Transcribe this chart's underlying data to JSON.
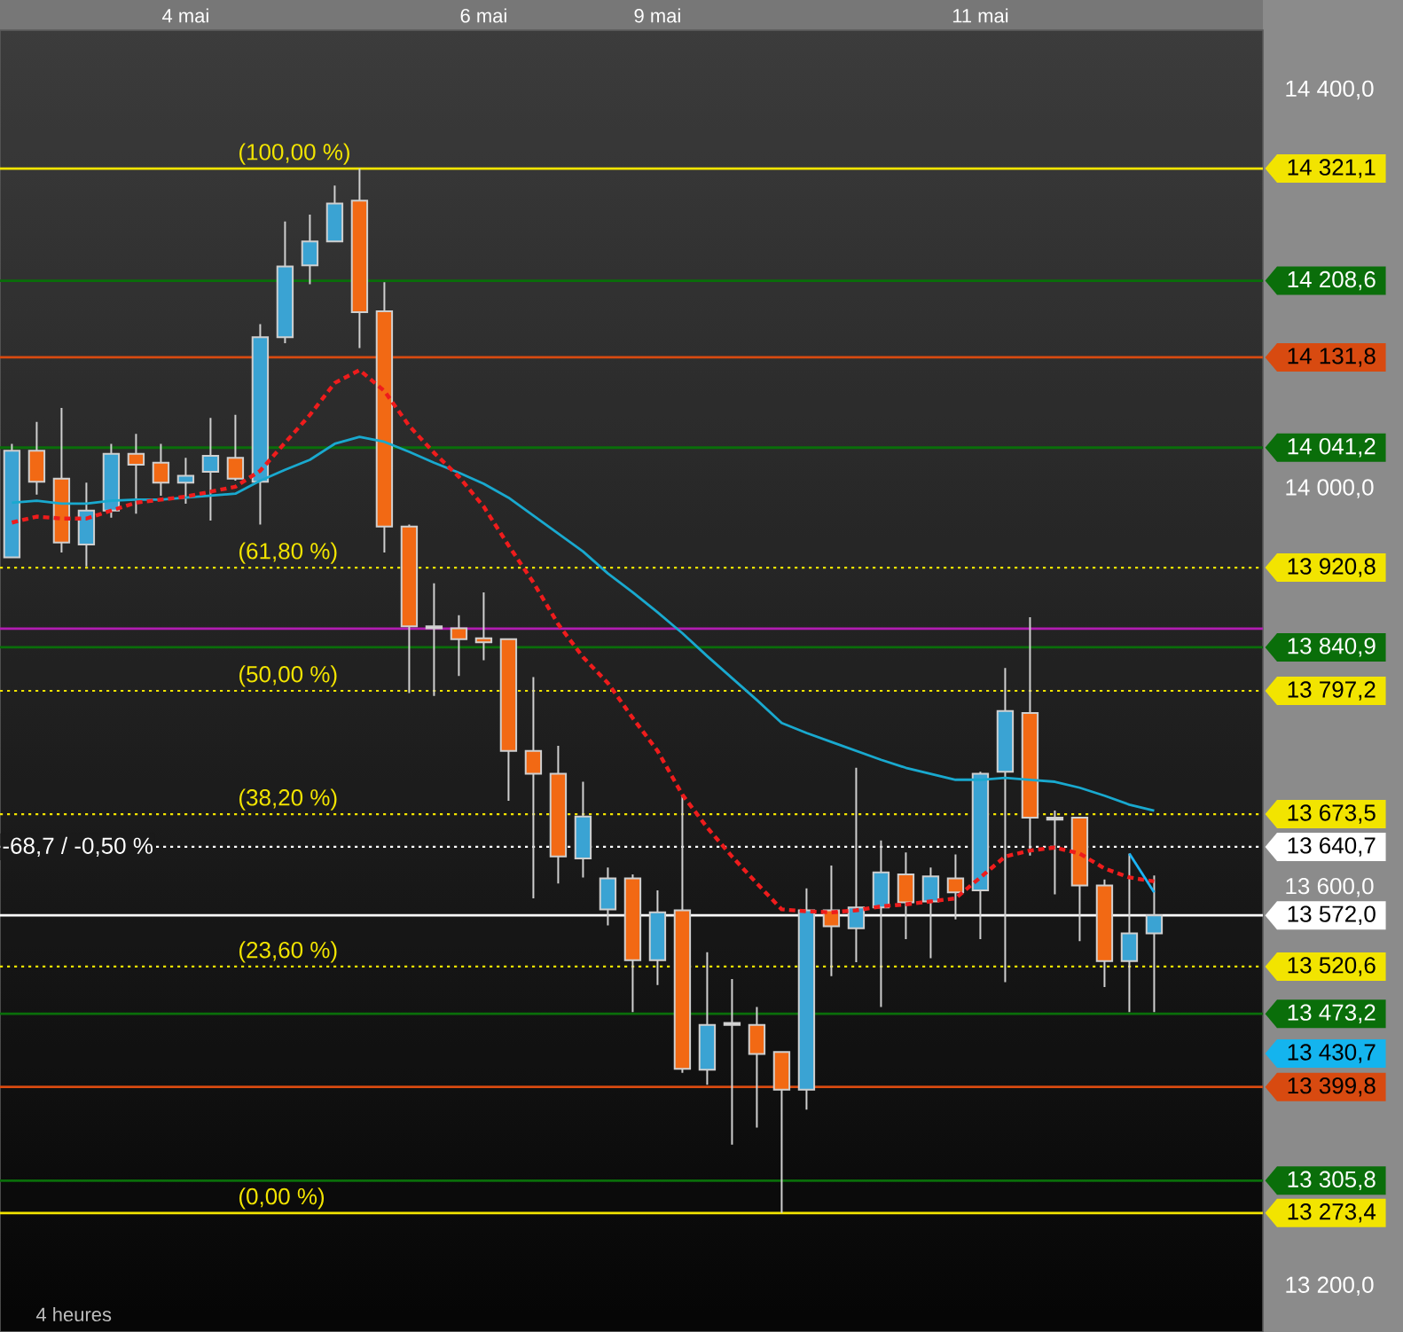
{
  "chart_data": {
    "type": "candlestick",
    "categories": [
      null,
      null,
      null,
      null,
      null,
      null,
      null,
      "4 mai",
      null,
      null,
      null,
      null,
      null,
      null,
      null,
      null,
      null,
      null,
      null,
      "6 mai",
      null,
      null,
      null,
      null,
      null,
      null,
      "9 mai",
      null,
      null,
      null,
      null,
      null,
      null,
      null,
      null,
      null,
      null,
      null,
      null,
      "11 mai",
      null,
      null,
      null,
      null,
      null,
      null,
      null
    ],
    "ohlc": [
      [
        13931,
        14045,
        13931,
        14038
      ],
      [
        14038,
        14067,
        13994,
        14007
      ],
      [
        14010,
        14081,
        13936,
        13946
      ],
      [
        13944,
        14006,
        13922,
        13978
      ],
      [
        13978,
        14045,
        13971,
        14035
      ],
      [
        14035,
        14055,
        13975,
        14024
      ],
      [
        14026,
        14045,
        13993,
        14006
      ],
      [
        14006,
        14031,
        13985,
        14013
      ],
      [
        14017,
        14071,
        13968,
        14033
      ],
      [
        14031,
        14074,
        14008,
        14010
      ],
      [
        14007,
        14165,
        13964,
        14152
      ],
      [
        14152,
        14268,
        14146,
        14223
      ],
      [
        14224,
        14275,
        14205,
        14248
      ],
      [
        14248,
        14304,
        14248,
        14286
      ],
      [
        14289,
        14321.1,
        14141,
        14177
      ],
      [
        14178,
        14207,
        13936,
        13962
      ],
      [
        13962,
        13964,
        13795,
        13862
      ],
      [
        13862,
        13905,
        13792,
        13860
      ],
      [
        13860,
        13873,
        13812,
        13849
      ],
      [
        13850,
        13896,
        13828,
        13846
      ],
      [
        13849,
        13849,
        13687,
        13737
      ],
      [
        13737,
        13811,
        13589,
        13714
      ],
      [
        13714,
        13742,
        13604,
        13631
      ],
      [
        13629,
        13706,
        13610,
        13671
      ],
      [
        13578,
        13620,
        13562,
        13609
      ],
      [
        13609,
        13613,
        13475,
        13527
      ],
      [
        13527,
        13597,
        13502,
        13575
      ],
      [
        13577,
        13692,
        13414,
        13418
      ],
      [
        13417,
        13535,
        13402,
        13462
      ],
      [
        13464,
        13508,
        13342,
        13462
      ],
      [
        13462,
        13480,
        13359,
        13433
      ],
      [
        13435,
        13435,
        13273.4,
        13397
      ],
      [
        13397,
        13599,
        13377,
        13577
      ],
      [
        13577,
        13622,
        13511,
        13561
      ],
      [
        13559,
        13720,
        13525,
        13580
      ],
      [
        13580,
        13647,
        13480,
        13615
      ],
      [
        13613,
        13635,
        13548,
        13585
      ],
      [
        13586,
        13620,
        13529,
        13611
      ],
      [
        13609,
        13633,
        13568,
        13595
      ],
      [
        13597,
        13716,
        13548,
        13714
      ],
      [
        13716,
        13820,
        13505,
        13777
      ],
      [
        13775,
        13871,
        13632,
        13670
      ],
      [
        13670,
        13677,
        13593,
        13668
      ],
      [
        13670,
        13670,
        13546,
        13602
      ],
      [
        13602,
        13608,
        13500,
        13526
      ],
      [
        13526,
        13634,
        13475,
        13554
      ],
      [
        13554,
        13612,
        13475,
        13572.0
      ]
    ],
    "colors": [
      "#3aa3d3",
      "#f26914",
      "#f26914",
      "#3aa3d3",
      "#3aa3d3",
      "#f26914",
      "#f26914",
      "#3aa3d3",
      "#3aa3d3",
      "#f26914",
      "#3aa3d3",
      "#3aa3d3",
      "#3aa3d3",
      "#3aa3d3",
      "#f26914",
      "#f26914",
      "#f26914",
      "#e6e6e6",
      "#f26914",
      "#f26914",
      "#f26914",
      "#f26914",
      "#f26914",
      "#3aa3d3",
      "#3aa3d3",
      "#f26914",
      "#3aa3d3",
      "#f26914",
      "#3aa3d3",
      "#e6e6e6",
      "#f26914",
      "#f26914",
      "#3aa3d3",
      "#f26914",
      "#3aa3d3",
      "#3aa3d3",
      "#f26914",
      "#3aa3d3",
      "#f26914",
      "#3aa3d3",
      "#3aa3d3",
      "#f26914",
      "#e6e6e6",
      "#f26914",
      "#f26914",
      "#3aa3d3",
      "#3aa3d3"
    ],
    "series": [
      {
        "type": "line",
        "color": "#19a9cf",
        "values": [
          13986,
          13988,
          13985,
          13985,
          13988,
          13989,
          13989,
          13991,
          13993,
          13995,
          14008,
          14019,
          14029,
          14045,
          14052,
          14047,
          14037,
          14026,
          14016,
          14005,
          13991,
          13973,
          13955,
          13937,
          13915,
          13896,
          13876,
          13855,
          13832,
          13810,
          13788,
          13765,
          13755,
          13746,
          13737,
          13728,
          13720,
          13714,
          13708,
          13708,
          13710,
          13708,
          13706,
          13700,
          13692,
          13683,
          13677
        ]
      },
      {
        "type": "line",
        "color": "#ee1c1c",
        "line_style": "dashed",
        "values": [
          13966,
          13972,
          13970,
          13970,
          13978,
          13986,
          13989,
          13992,
          13997,
          14002,
          14018,
          14046,
          14074,
          14106,
          14119,
          14098,
          14063,
          14036,
          14012,
          13982,
          13943,
          13906,
          13864,
          13831,
          13805,
          13770,
          13737,
          13693,
          13660,
          13631,
          13604,
          13578,
          13576,
          13575,
          13577,
          13581,
          13583,
          13586,
          13589,
          13610,
          13631,
          13637,
          13640,
          13634,
          13619,
          13610,
          13606
        ]
      },
      {
        "type": "line",
        "color": "#1cb4f4",
        "values": [
          null,
          null,
          null,
          null,
          null,
          null,
          null,
          null,
          null,
          null,
          null,
          null,
          null,
          null,
          null,
          null,
          null,
          null,
          null,
          null,
          null,
          null,
          null,
          null,
          null,
          null,
          null,
          null,
          null,
          null,
          null,
          null,
          null,
          null,
          null,
          null,
          null,
          null,
          null,
          null,
          null,
          null,
          null,
          null,
          null,
          13634,
          13595
        ]
      }
    ],
    "ylim": [
      13154,
      14460
    ],
    "yticks": [
      {
        "value": 13200,
        "label": "13 200,0"
      },
      {
        "value": 13600,
        "label": "13 600,0"
      },
      {
        "value": 14000,
        "label": "14 000,0"
      },
      {
        "value": 14400,
        "label": "14 400,0"
      }
    ],
    "ref_lines": [
      {
        "axis": "y",
        "value": 14321.1,
        "label": "14 321,1",
        "color": "#f2e400",
        "line_style": "solid"
      },
      {
        "axis": "y",
        "value": 14208.6,
        "label": "14 208,6",
        "color": "#0a6e0a",
        "line_style": "solid"
      },
      {
        "axis": "y",
        "value": 14131.8,
        "label": "14 131,8",
        "color": "#d84a10",
        "line_style": "solid"
      },
      {
        "axis": "y",
        "value": 14041.2,
        "label": "14 041,2",
        "color": "#0a6e0a",
        "line_style": "solid"
      },
      {
        "axis": "y",
        "value": 13920.8,
        "label": "13 920,8",
        "color": "#f2e400",
        "line_style": "dotted"
      },
      {
        "axis": "y",
        "value": 13859.5,
        "color": "#b21cb2",
        "line_style": "solid"
      },
      {
        "axis": "y",
        "value": 13840.9,
        "label": "13 840,9",
        "color": "#0a6e0a",
        "line_style": "solid"
      },
      {
        "axis": "y",
        "value": 13797.2,
        "label": "13 797,2",
        "color": "#f2e400",
        "line_style": "dotted"
      },
      {
        "axis": "y",
        "value": 13673.5,
        "label": "13 673,5",
        "color": "#f2e400",
        "line_style": "dotted"
      },
      {
        "axis": "y",
        "value": 13640.7,
        "label": "13 640,7",
        "color": "#ffffff",
        "line_style": "dotted"
      },
      {
        "axis": "y",
        "value": 13572.0,
        "label": "13 572,0",
        "color": "#ffffff",
        "line_style": "solid"
      },
      {
        "axis": "y",
        "value": 13520.6,
        "label": "13 520,6",
        "color": "#f2e400",
        "line_style": "dotted"
      },
      {
        "axis": "y",
        "value": 13473.2,
        "label": "13 473,2",
        "color": "#0a6e0a",
        "line_style": "solid"
      },
      {
        "axis": "y",
        "value": 13399.8,
        "label": "13 399,8",
        "color": "#d84a10",
        "line_style": "solid"
      },
      {
        "axis": "y",
        "value": 13305.8,
        "label": "13 305,8",
        "color": "#0a6e0a",
        "line_style": "solid"
      },
      {
        "axis": "y",
        "value": 13273.4,
        "label": "13 273,4",
        "color": "#f2e400",
        "line_style": "solid"
      }
    ],
    "annotations": [
      {
        "text": "(100,00 %)",
        "y": 14321.1
      },
      {
        "text": "(61,80 %)",
        "y": 13920.8
      },
      {
        "text": "(50,00 %)",
        "y": 13797.2
      },
      {
        "text": "(38,20 %)",
        "y": 13673.5
      },
      {
        "text": "(23,60 %)",
        "y": 13520.6
      },
      {
        "text": "(0,00 %)",
        "y": 13273.4
      },
      {
        "text": "-68,7 / -0,50 %",
        "y": 13640.7
      },
      "13 430,7",
      "4 heures"
    ]
  }
}
